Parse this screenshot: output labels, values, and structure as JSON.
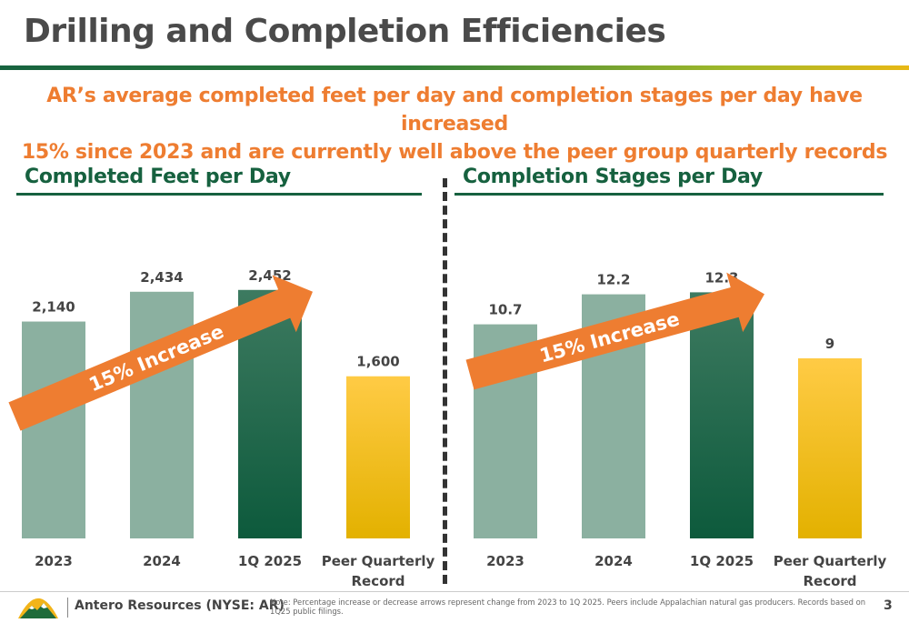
{
  "title": "Drilling and Completion Efficiencies",
  "subtitle_line1": "AR’s average completed feet per day and completion stages per day have increased",
  "subtitle_line2": "15% since 2023 and are currently well above the peer group quarterly records",
  "colors": {
    "historic_bar": "#8bb0a0",
    "current_bar_top": "#3d7a60",
    "current_bar_bottom": "#0d5a3c",
    "peer_bar_top": "#ffcb45",
    "peer_bar_bottom": "#e3b100",
    "arrow": "#ee7d31",
    "accent_green": "#16613f",
    "subtitle_orange": "#ee7d31"
  },
  "chart_data": [
    {
      "type": "bar",
      "title": "Completed Feet per Day",
      "categories": [
        "2023",
        "2024",
        "1Q 2025",
        "Peer Quarterly Record"
      ],
      "values": [
        2140,
        2434,
        2452,
        1600
      ],
      "value_labels": [
        "2,140",
        "2,434",
        "2,452",
        "1,600"
      ],
      "bar_styles": [
        "historic",
        "historic",
        "current",
        "peer"
      ],
      "ylim": [
        0,
        2800
      ],
      "grid": false,
      "annotation": "15% Increase"
    },
    {
      "type": "bar",
      "title": "Completion Stages per Day",
      "categories": [
        "2023",
        "2024",
        "1Q 2025",
        "Peer Quarterly Record"
      ],
      "values": [
        10.7,
        12.2,
        12.3,
        9
      ],
      "value_labels": [
        "10.7",
        "12.2",
        "12.3",
        "9"
      ],
      "bar_styles": [
        "historic",
        "historic",
        "current",
        "peer"
      ],
      "ylim": [
        0,
        14
      ],
      "grid": false,
      "annotation": "15% Increase"
    }
  ],
  "footer": {
    "company": "Antero Resources (NYSE: AR)",
    "note": "Note: Percentage increase or decrease arrows represent change from 2023 to 1Q 2025. Peers include Appalachian natural gas producers. Records based on 1Q25 public filings.",
    "page_number": "3",
    "logo_icon": "mountain-logo-icon"
  }
}
